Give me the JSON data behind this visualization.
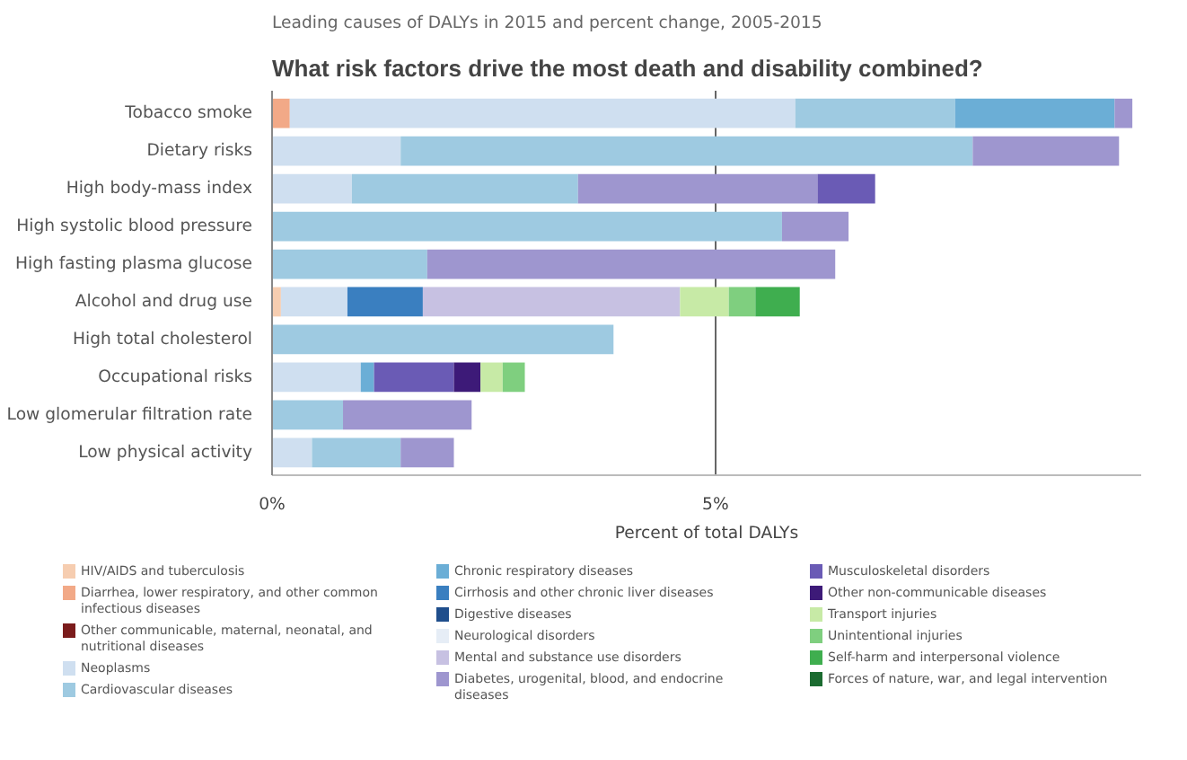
{
  "chart_data": {
    "type": "bar",
    "orientation": "horizontal",
    "stacked": true,
    "subtitle": "Leading causes of DALYs in 2015 and percent change, 2005-2015",
    "title": "What risk factors drive the most death and disability combined?",
    "xlabel": "Percent of total DALYs",
    "categories": [
      "Tobacco smoke",
      "Dietary risks",
      "High body-mass index",
      "High systolic blood pressure",
      "High fasting plasma glucose",
      "Alcohol and drug use",
      "High total cholesterol",
      "Occupational risks",
      "Low glomerular filtration rate",
      "Low physical activity"
    ],
    "xlim": [
      0,
      9.8
    ],
    "xticks": [
      {
        "value": 0,
        "label": "0%"
      },
      {
        "value": 5,
        "label": "5%"
      }
    ],
    "grid": "x",
    "legend": "bottom",
    "series": [
      {
        "name": "HIV/AIDS and tuberculosis",
        "color": "#f6cdb0",
        "values": [
          null,
          null,
          null,
          null,
          null,
          0.1,
          null,
          null,
          null,
          null
        ]
      },
      {
        "name": "Diarrhea, lower respiratory, and other common infectious diseases",
        "color": "#f2a987",
        "values": [
          0.2,
          null,
          null,
          null,
          null,
          null,
          null,
          null,
          null,
          null
        ]
      },
      {
        "name": "Other communicable, maternal, neonatal, and nutritional diseases",
        "color": "#7b1c1c",
        "values": [
          null,
          null,
          null,
          null,
          null,
          null,
          null,
          null,
          null,
          null
        ]
      },
      {
        "name": "Neoplasms",
        "color": "#cfdff0",
        "values": [
          5.7,
          1.45,
          0.9,
          null,
          null,
          0.75,
          null,
          1.0,
          null,
          0.45
        ]
      },
      {
        "name": "Cardiovascular diseases",
        "color": "#9ecae1",
        "values": [
          1.8,
          6.45,
          2.55,
          5.75,
          1.75,
          null,
          3.85,
          null,
          0.8,
          1.0
        ]
      },
      {
        "name": "Chronic respiratory diseases",
        "color": "#6baed6",
        "values": [
          1.8,
          null,
          null,
          null,
          null,
          null,
          null,
          0.15,
          null,
          null
        ]
      },
      {
        "name": "Cirrhosis and other chronic liver diseases",
        "color": "#3a7fc0",
        "values": [
          null,
          null,
          null,
          null,
          null,
          0.85,
          null,
          null,
          null,
          null
        ]
      },
      {
        "name": "Digestive diseases",
        "color": "#1f4e8c",
        "values": [
          null,
          null,
          null,
          null,
          null,
          null,
          null,
          null,
          null,
          null
        ]
      },
      {
        "name": "Neurological disorders",
        "color": "#e6edf6",
        "values": [
          null,
          null,
          null,
          null,
          null,
          null,
          null,
          null,
          null,
          null
        ]
      },
      {
        "name": "Mental and substance use disorders",
        "color": "#c7c1e2",
        "values": [
          null,
          null,
          null,
          null,
          null,
          2.9,
          null,
          null,
          null,
          null
        ]
      },
      {
        "name": "Diabetes, urogenital, blood, and endocrine diseases",
        "color": "#9e96cf",
        "values": [
          0.2,
          1.65,
          2.7,
          0.75,
          4.6,
          null,
          null,
          null,
          1.45,
          0.6
        ]
      },
      {
        "name": "Musculoskeletal disorders",
        "color": "#6a5bb5",
        "values": [
          null,
          null,
          0.65,
          null,
          null,
          null,
          null,
          0.9,
          null,
          null
        ]
      },
      {
        "name": "Other non-communicable diseases",
        "color": "#3d1a78",
        "values": [
          null,
          null,
          null,
          null,
          null,
          null,
          null,
          0.3,
          null,
          null
        ]
      },
      {
        "name": "Transport injuries",
        "color": "#c7eaa6",
        "values": [
          null,
          null,
          null,
          null,
          null,
          0.55,
          null,
          0.25,
          null,
          null
        ]
      },
      {
        "name": "Unintentional injuries",
        "color": "#7fcf7f",
        "values": [
          null,
          null,
          null,
          null,
          null,
          0.3,
          null,
          0.25,
          null,
          null
        ]
      },
      {
        "name": "Self-harm and interpersonal violence",
        "color": "#3fae4f",
        "values": [
          null,
          null,
          null,
          null,
          null,
          0.5,
          null,
          null,
          null,
          null
        ]
      },
      {
        "name": "Forces of nature, war, and legal intervention",
        "color": "#1b6b30",
        "values": [
          null,
          null,
          null,
          null,
          null,
          null,
          null,
          null,
          null,
          null
        ]
      }
    ]
  }
}
